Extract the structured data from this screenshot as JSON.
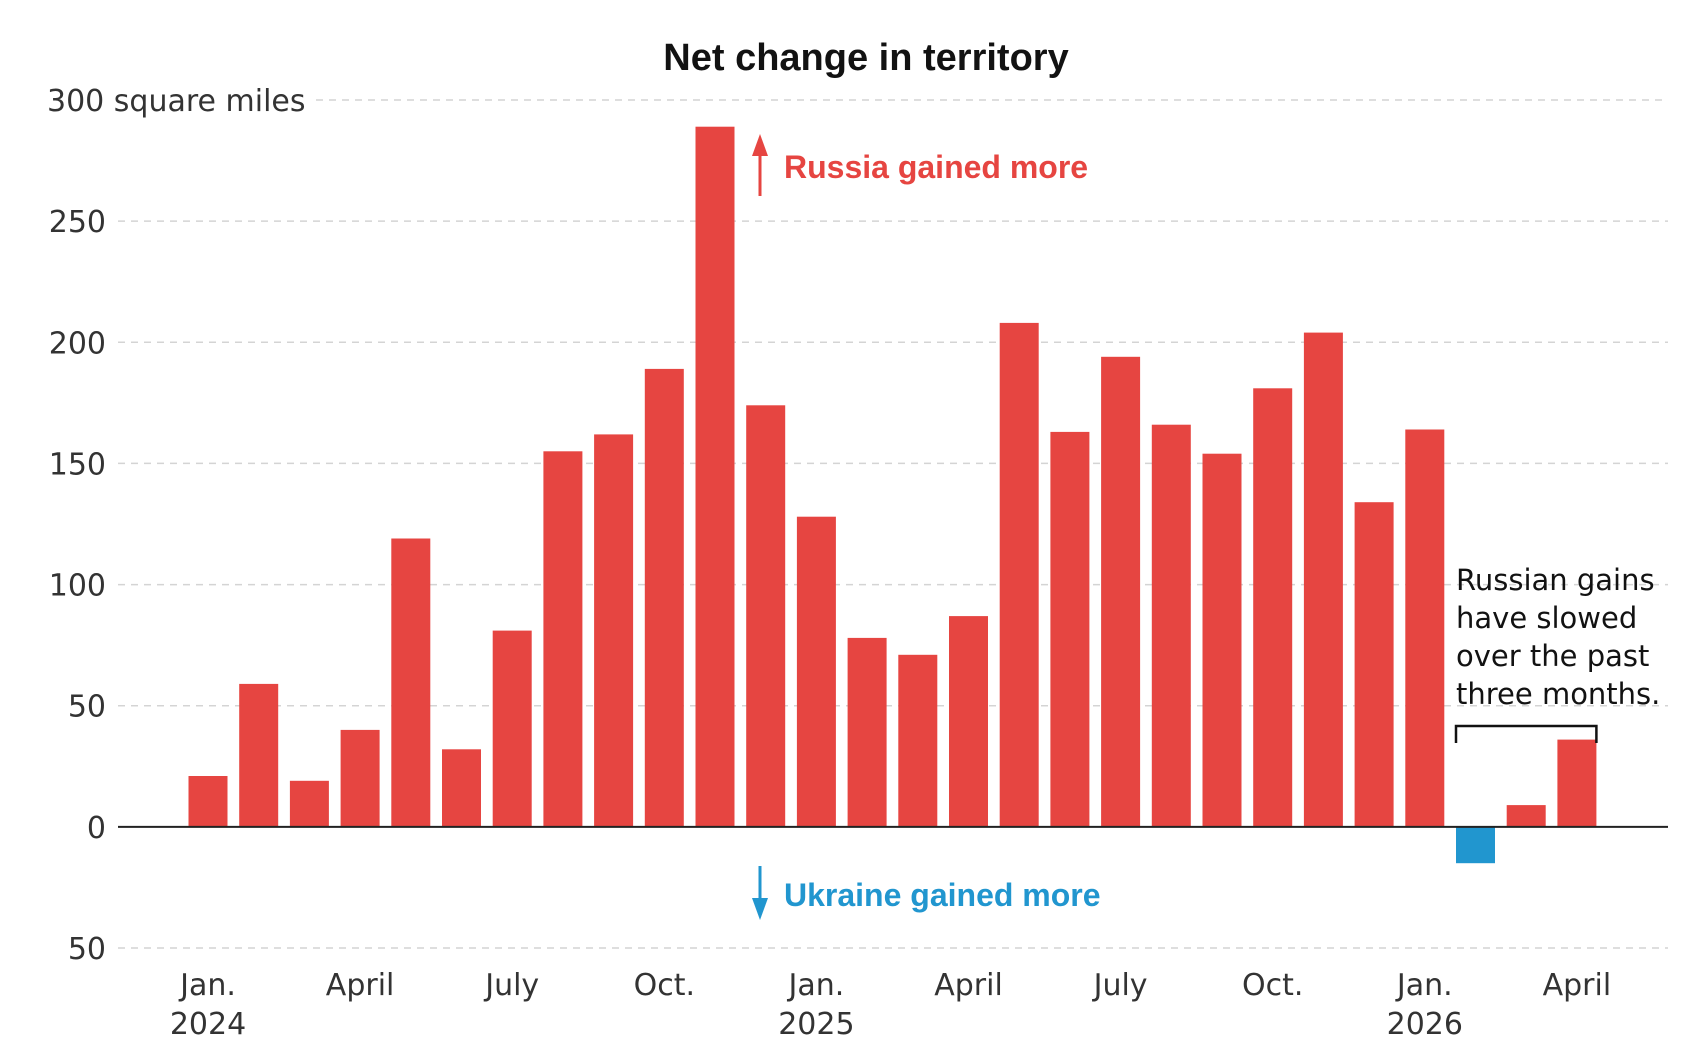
{
  "chart_data": {
    "type": "bar",
    "title": "Net change in territory",
    "ylabel_unit": "square miles",
    "ylim": [
      -50,
      300
    ],
    "y_ticks": [
      {
        "value": 300,
        "label": "300"
      },
      {
        "value": 250,
        "label": "250"
      },
      {
        "value": 200,
        "label": "200"
      },
      {
        "value": 150,
        "label": "150"
      },
      {
        "value": 100,
        "label": "100"
      },
      {
        "value": 50,
        "label": "50"
      },
      {
        "value": 0,
        "label": "0"
      },
      {
        "value": -50,
        "label": "50"
      }
    ],
    "grid": true,
    "months": [
      "2024-01",
      "2024-02",
      "2024-03",
      "2024-04",
      "2024-05",
      "2024-06",
      "2024-07",
      "2024-08",
      "2024-09",
      "2024-10",
      "2024-11",
      "2024-12",
      "2025-01",
      "2025-02",
      "2025-03",
      "2025-04",
      "2025-05",
      "2025-06",
      "2025-07",
      "2025-08",
      "2025-09",
      "2025-10",
      "2025-11",
      "2025-12",
      "2026-01",
      "2026-02",
      "2026-03",
      "2026-04"
    ],
    "values": [
      21,
      59,
      19,
      40,
      119,
      32,
      81,
      155,
      162,
      189,
      289,
      174,
      128,
      78,
      71,
      87,
      208,
      163,
      194,
      166,
      154,
      181,
      204,
      134,
      164,
      -15,
      9,
      36
    ],
    "x_tick_labels": [
      {
        "index": 0,
        "lines": [
          "Jan.",
          "2024"
        ]
      },
      {
        "index": 3,
        "lines": [
          "April"
        ]
      },
      {
        "index": 6,
        "lines": [
          "July"
        ]
      },
      {
        "index": 9,
        "lines": [
          "Oct."
        ]
      },
      {
        "index": 12,
        "lines": [
          "Jan.",
          "2025"
        ]
      },
      {
        "index": 15,
        "lines": [
          "April"
        ]
      },
      {
        "index": 18,
        "lines": [
          "July"
        ]
      },
      {
        "index": 21,
        "lines": [
          "Oct."
        ]
      },
      {
        "index": 24,
        "lines": [
          "Jan.",
          "2026"
        ]
      },
      {
        "index": 27,
        "lines": [
          "April"
        ]
      }
    ],
    "colors": {
      "positive": "#e64541",
      "negative": "#2196cf",
      "axis": "#222222",
      "grid": "#d4d4d4",
      "text": "#333333"
    },
    "annotations": {
      "russia": "Russia gained more",
      "ukraine": "Ukraine gained more",
      "note_lines": [
        "Russian gains",
        "have slowed",
        "over the past",
        "three months."
      ],
      "note_bracket_from": 25,
      "note_bracket_to": 27
    }
  }
}
